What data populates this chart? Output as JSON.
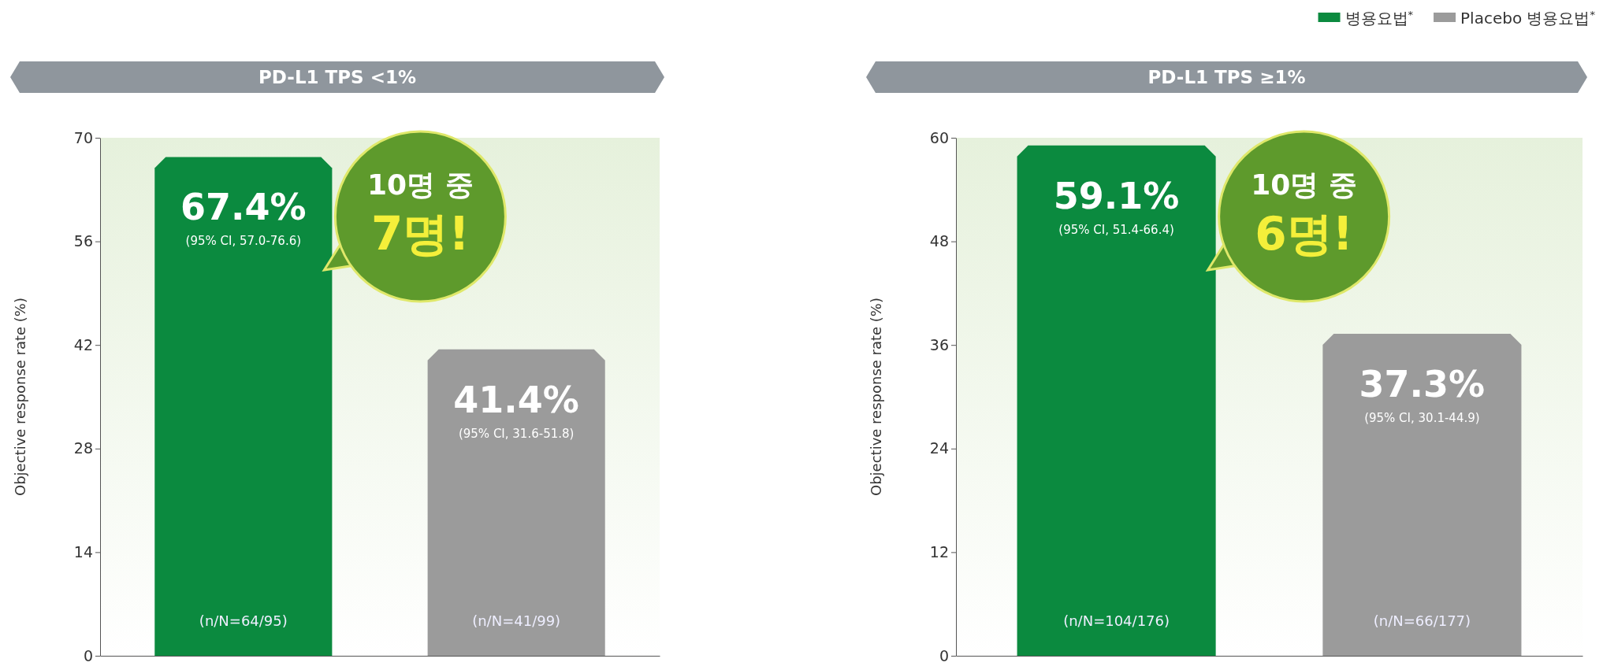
{
  "chart_data": [
    {
      "type": "bar",
      "title": "PD-L1 TPS <1%",
      "ylabel": "Objective response rate (%)",
      "categories": [
        null,
        null
      ],
      "values": [
        67.4,
        41.4
      ],
      "colors": [
        "#0b8a3f",
        "#9b9b9b"
      ],
      "value_labels": [
        "67.4%",
        "41.4%"
      ],
      "ylim": [
        0,
        70
      ],
      "yticks": [
        0,
        14,
        28,
        42,
        56,
        70
      ],
      "annotations": [
        "(95% CI, 57.0-76.6)",
        "(95% CI, 31.6-51.8)",
        "(n/N=64/95)",
        "(n/N=41/99)",
        "10명 중",
        "7명!"
      ]
    },
    {
      "type": "bar",
      "title": "PD-L1 TPS ≥1%",
      "ylabel": "Objective response rate (%)",
      "categories": [
        null,
        null
      ],
      "series": [
        {
          "name": "병용요법$^{*}$",
          "color": "#0b8a3f",
          "values": [
            59.1,
            null
          ]
        },
        {
          "name": "Placebo 병용요법$^{*}$",
          "color": "#9b9b9b",
          "values": [
            null,
            37.3
          ]
        }
      ],
      "value_labels": [
        "59.1%",
        "37.3%"
      ],
      "legend": "top right",
      "ylim": [
        0,
        60
      ],
      "yticks": [
        0,
        12,
        24,
        36,
        48,
        60
      ],
      "annotations": [
        "(95% CI, 51.4-66.4)",
        "(95% CI, 30.1-44.9)",
        "(n/N=104/176)",
        "(n/N=66/177)",
        "10명 중",
        "6명!"
      ]
    }
  ]
}
